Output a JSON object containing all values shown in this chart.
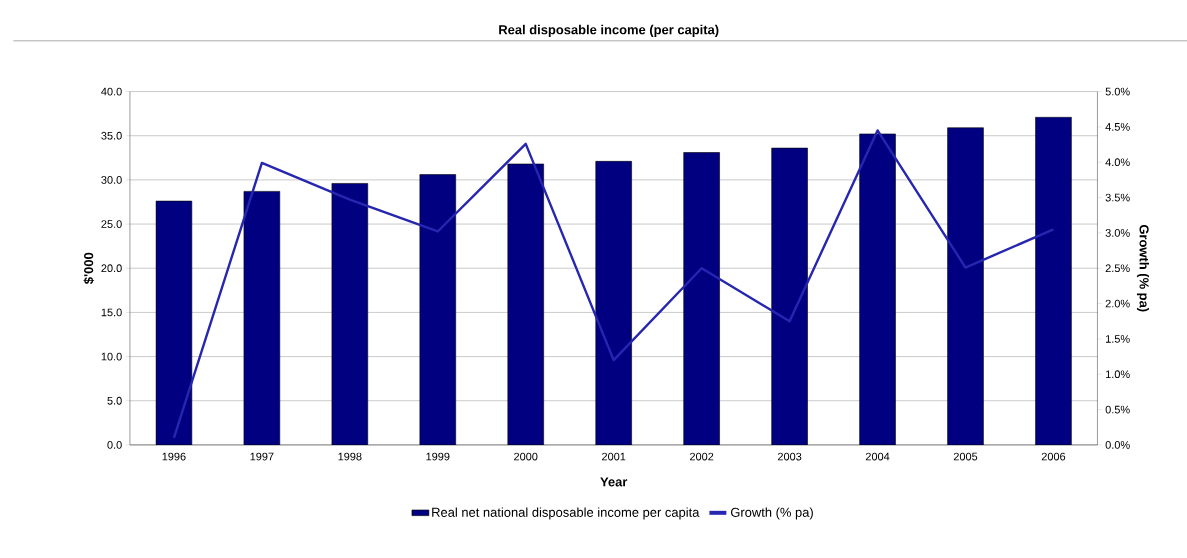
{
  "chart_data": {
    "type": "bar",
    "title": "Real disposable income (per capita)",
    "xlabel": "Year",
    "ylabel": "$'000",
    "y2label": "Growth (% pa)",
    "categories": [
      "1996",
      "1997",
      "1998",
      "1999",
      "2000",
      "2001",
      "2002",
      "2003",
      "2004",
      "2005",
      "2006"
    ],
    "series": [
      {
        "name": "Real net national disposable income per capita",
        "color": "#000080",
        "values": [
          27.6,
          28.7,
          29.6,
          30.6,
          31.8,
          32.1,
          33.1,
          33.6,
          35.2,
          35.9,
          37.1
        ]
      },
      {
        "name": "Growth (% pa)",
        "type": "line",
        "axis": "y2",
        "color": "#2626b0",
        "values": [
          0.1,
          3.99,
          3.47,
          3.02,
          4.26,
          1.2,
          2.5,
          1.75,
          4.45,
          2.51,
          3.05
        ]
      }
    ],
    "ylim": [
      0,
      40
    ],
    "yticks": [
      {
        "value": 0,
        "label": "0.0"
      },
      {
        "value": 5,
        "label": "5.0"
      },
      {
        "value": 10,
        "label": "10.0"
      },
      {
        "value": 15,
        "label": "15.0"
      },
      {
        "value": 20,
        "label": "20.0"
      },
      {
        "value": 25,
        "label": "25.0"
      },
      {
        "value": 30,
        "label": "30.0"
      },
      {
        "value": 35,
        "label": "35.0"
      },
      {
        "value": 40,
        "label": "40.0"
      }
    ],
    "y2lim": [
      0,
      5
    ],
    "y2ticks": [
      {
        "value": 0,
        "label": "0.0%"
      },
      {
        "value": 0.5,
        "label": "0.5%"
      },
      {
        "value": 1,
        "label": "1.0%"
      },
      {
        "value": 1.5,
        "label": "1.5%"
      },
      {
        "value": 2,
        "label": "2.0%"
      },
      {
        "value": 2.5,
        "label": "2.5%"
      },
      {
        "value": 3,
        "label": "3.0%"
      },
      {
        "value": 3.5,
        "label": "3.5%"
      },
      {
        "value": 4,
        "label": "4.0%"
      },
      {
        "value": 4.5,
        "label": "4.5%"
      },
      {
        "value": 5,
        "label": "5.0%"
      }
    ],
    "grid": "y",
    "legend": "bottom",
    "marker": "none",
    "line_style": "solid"
  }
}
